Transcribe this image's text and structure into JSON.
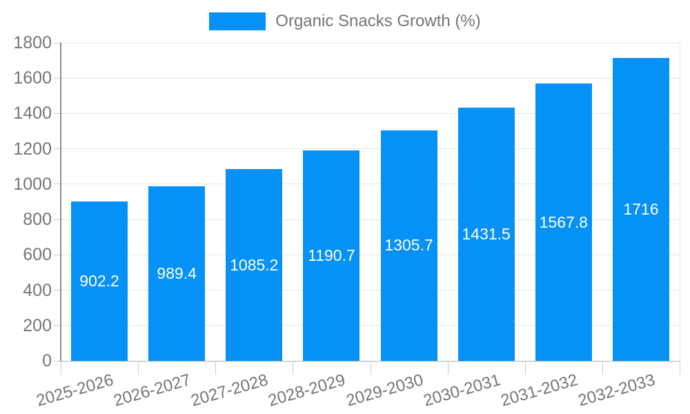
{
  "legend": {
    "label": "Organic Snacks Growth (%)"
  },
  "chart_data": {
    "type": "bar",
    "title": "Organic Snacks Growth (%)",
    "categories": [
      "2025-2026",
      "2026-2027",
      "2027-2028",
      "2028-2029",
      "2029-2030",
      "2030-2031",
      "2031-2032",
      "2032-2033"
    ],
    "values": [
      902.2,
      989.4,
      1085.2,
      1190.7,
      1305.7,
      1431.5,
      1567.8,
      1716
    ],
    "bar_labels": [
      "902.2",
      "989.4",
      "1085.2",
      "1190.7",
      "1305.7",
      "1431.5",
      "1567.8",
      "1716"
    ],
    "xlabel": "",
    "ylabel": "",
    "ylim": [
      0,
      1800
    ],
    "yticks": [
      0,
      200,
      400,
      600,
      800,
      1000,
      1200,
      1400,
      1600,
      1800
    ],
    "grid": true,
    "legend_position": "top",
    "bar_label_position": "center-inside",
    "colors": {
      "bar": "#0591f5",
      "bar_label": "#ffffff",
      "axis_text": "#757575",
      "gridline": "#e6e6e6",
      "baseline": "#b0b0b0",
      "axis_line": "#8f8f8f"
    }
  }
}
